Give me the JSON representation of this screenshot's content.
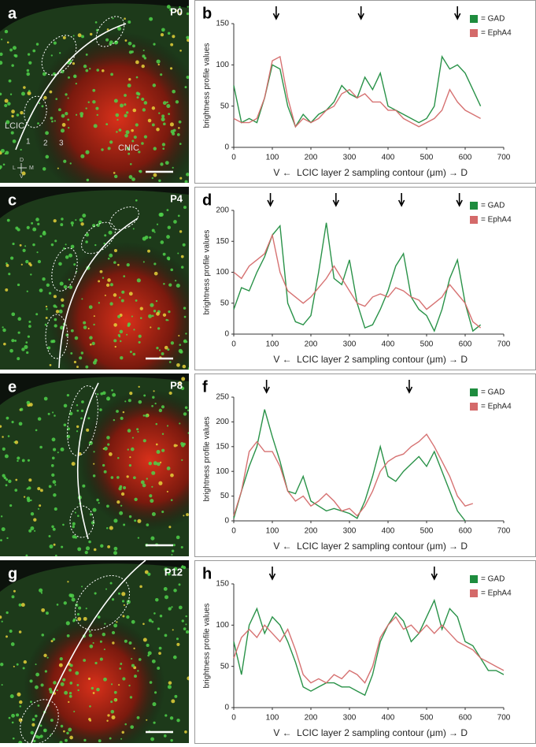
{
  "panels": [
    {
      "letter": "a",
      "age": "P0",
      "labels": [
        "LCIC",
        "CNIC",
        "1",
        "2",
        "3"
      ],
      "orientation": [
        "D",
        "L",
        "M",
        "V"
      ]
    },
    {
      "letter": "c",
      "age": "P4"
    },
    {
      "letter": "e",
      "age": "P8"
    },
    {
      "letter": "g",
      "age": "P12"
    }
  ],
  "chart_data": [
    {
      "type": "line",
      "panel": "b",
      "ylabel": "brightness profile values",
      "xlabel": "LCIC layer 2 sampling contour (μm)",
      "xlabel_start": "V ←",
      "xlabel_end": "→ D",
      "xlim": [
        0,
        700
      ],
      "xticks": [
        0,
        100,
        200,
        300,
        400,
        500,
        600,
        700
      ],
      "ylim": [
        0,
        150
      ],
      "yticks": [
        0,
        50,
        100,
        150
      ],
      "arrows": [
        110,
        330,
        580
      ],
      "x": [
        0,
        20,
        40,
        60,
        80,
        100,
        120,
        140,
        160,
        180,
        200,
        220,
        240,
        260,
        280,
        300,
        320,
        340,
        360,
        380,
        400,
        420,
        440,
        460,
        480,
        500,
        520,
        540,
        560,
        580,
        600,
        620,
        640
      ],
      "series": [
        {
          "name": "= GAD",
          "color": "#1e8c3e",
          "values": [
            75,
            30,
            35,
            30,
            60,
            100,
            95,
            50,
            25,
            40,
            30,
            40,
            45,
            55,
            75,
            65,
            60,
            85,
            70,
            90,
            50,
            45,
            40,
            35,
            30,
            35,
            50,
            110,
            95,
            100,
            90,
            70,
            50
          ]
        },
        {
          "name": "= EphA4",
          "color": "#d46a6a",
          "values": [
            35,
            30,
            30,
            35,
            60,
            105,
            110,
            60,
            25,
            35,
            30,
            35,
            45,
            50,
            65,
            70,
            60,
            65,
            55,
            55,
            45,
            45,
            35,
            30,
            25,
            30,
            35,
            45,
            70,
            55,
            45,
            40,
            35
          ]
        }
      ]
    },
    {
      "type": "line",
      "panel": "d",
      "ylabel": "brightness profile values",
      "xlabel": "LCIC layer 2 sampling contour (μm)",
      "xlabel_start": "V ←",
      "xlabel_end": "→ D",
      "xlim": [
        0,
        700
      ],
      "xticks": [
        0,
        100,
        200,
        300,
        400,
        500,
        600,
        700
      ],
      "ylim": [
        0,
        200
      ],
      "yticks": [
        0,
        50,
        100,
        150,
        200
      ],
      "arrows": [
        95,
        265,
        435,
        585
      ],
      "x": [
        0,
        20,
        40,
        60,
        80,
        100,
        120,
        140,
        160,
        180,
        200,
        220,
        240,
        260,
        280,
        300,
        320,
        340,
        360,
        380,
        400,
        420,
        440,
        460,
        480,
        500,
        520,
        540,
        560,
        580,
        600,
        620,
        640
      ],
      "series": [
        {
          "name": "= GAD",
          "color": "#1e8c3e",
          "values": [
            40,
            75,
            70,
            100,
            125,
            160,
            175,
            50,
            20,
            15,
            30,
            100,
            180,
            90,
            80,
            120,
            50,
            10,
            15,
            40,
            70,
            110,
            130,
            60,
            40,
            30,
            5,
            40,
            90,
            120,
            50,
            5,
            15
          ]
        },
        {
          "name": "= EphA4",
          "color": "#d46a6a",
          "values": [
            100,
            90,
            110,
            120,
            130,
            160,
            100,
            70,
            60,
            50,
            60,
            75,
            90,
            110,
            90,
            70,
            50,
            45,
            60,
            65,
            60,
            75,
            70,
            60,
            55,
            40,
            50,
            60,
            80,
            65,
            50,
            20,
            10
          ]
        }
      ]
    },
    {
      "type": "line",
      "panel": "f",
      "ylabel": "brightness profile values",
      "xlabel": "LCIC layer 2 sampling contour (μm)",
      "xlabel_start": "V ←",
      "xlabel_end": "→ D",
      "xlim": [
        0,
        700
      ],
      "xticks": [
        0,
        100,
        200,
        300,
        400,
        500,
        600,
        700
      ],
      "ylim": [
        0,
        250
      ],
      "yticks": [
        0,
        50,
        100,
        150,
        200,
        250
      ],
      "arrows": [
        85,
        455
      ],
      "x": [
        0,
        20,
        40,
        60,
        80,
        100,
        120,
        140,
        160,
        180,
        200,
        220,
        240,
        260,
        280,
        300,
        320,
        340,
        360,
        380,
        400,
        420,
        440,
        460,
        480,
        500,
        520,
        540,
        560,
        580,
        600,
        620
      ],
      "series": [
        {
          "name": "= GAD",
          "color": "#1e8c3e",
          "values": [
            5,
            60,
            110,
            150,
            225,
            170,
            120,
            60,
            55,
            90,
            40,
            30,
            20,
            25,
            20,
            15,
            5,
            40,
            90,
            150,
            90,
            80,
            100,
            115,
            130,
            110,
            140,
            100,
            60,
            20,
            0,
            null
          ]
        },
        {
          "name": "= EphA4",
          "color": "#d46a6a",
          "values": [
            10,
            60,
            140,
            160,
            140,
            140,
            110,
            60,
            40,
            50,
            30,
            40,
            55,
            40,
            20,
            25,
            10,
            30,
            60,
            100,
            120,
            130,
            135,
            150,
            160,
            175,
            150,
            120,
            90,
            50,
            30,
            35
          ]
        }
      ]
    },
    {
      "type": "line",
      "panel": "h",
      "ylabel": "brightness profile values",
      "xlabel": "LCIC layer 2 sampling contour (μm)",
      "xlabel_start": "V ←",
      "xlabel_end": "→ D",
      "xlim": [
        0,
        700
      ],
      "xticks": [
        0,
        100,
        200,
        300,
        400,
        500,
        600,
        700
      ],
      "ylim": [
        0,
        150
      ],
      "yticks": [
        0,
        50,
        100,
        150
      ],
      "arrows": [
        100,
        520
      ],
      "x": [
        0,
        20,
        40,
        60,
        80,
        100,
        120,
        140,
        160,
        180,
        200,
        220,
        240,
        260,
        280,
        300,
        320,
        340,
        360,
        380,
        400,
        420,
        440,
        460,
        480,
        500,
        520,
        540,
        560,
        580,
        600,
        620,
        640,
        660,
        680,
        700
      ],
      "series": [
        {
          "name": "= GAD",
          "color": "#1e8c3e",
          "values": [
            80,
            40,
            100,
            120,
            90,
            110,
            100,
            80,
            55,
            25,
            20,
            25,
            30,
            30,
            25,
            25,
            20,
            15,
            40,
            80,
            100,
            115,
            105,
            80,
            90,
            110,
            130,
            95,
            120,
            110,
            80,
            75,
            60,
            45,
            45,
            40
          ]
        },
        {
          "name": "= EphA4",
          "color": "#d46a6a",
          "values": [
            60,
            85,
            95,
            85,
            100,
            90,
            80,
            95,
            70,
            40,
            30,
            35,
            30,
            40,
            35,
            45,
            40,
            30,
            50,
            85,
            100,
            110,
            95,
            100,
            90,
            100,
            90,
            100,
            90,
            80,
            75,
            70,
            60,
            55,
            50,
            45
          ]
        }
      ]
    }
  ]
}
